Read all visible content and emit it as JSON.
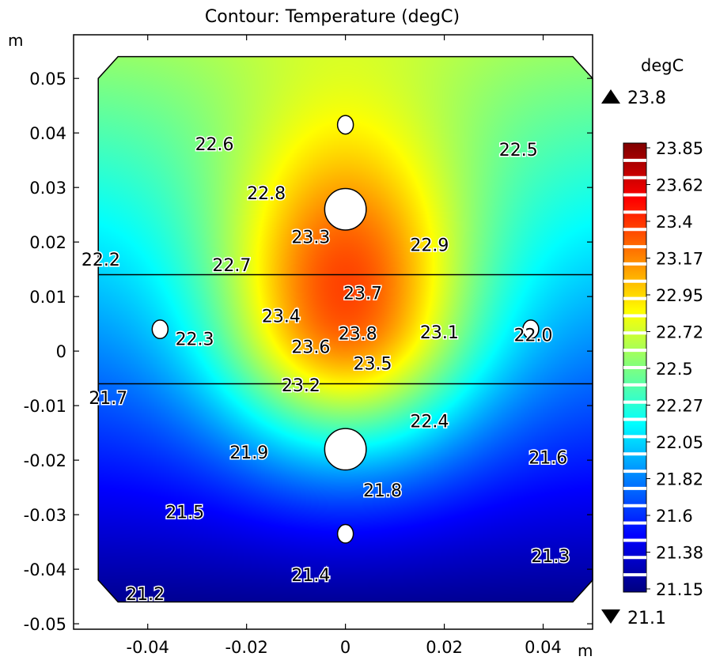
{
  "chart_data": {
    "type": "contour",
    "title": "Contour: Temperature (degC)",
    "x_unit_label": "m",
    "y_unit_label": "m",
    "x_axis": {
      "range": [
        -0.055,
        0.05
      ],
      "ticks": [
        -0.04,
        -0.02,
        0,
        0.02,
        0.04
      ],
      "tick_labels": [
        "-0.04",
        "-0.02",
        "0",
        "0.02",
        "0.04"
      ]
    },
    "y_axis": {
      "range": [
        -0.051,
        0.058
      ],
      "ticks": [
        -0.05,
        -0.04,
        -0.03,
        -0.02,
        -0.01,
        0,
        0.01,
        0.02,
        0.03,
        0.04,
        0.05
      ],
      "tick_labels": [
        "-0.05",
        "-0.04",
        "-0.03",
        "-0.02",
        "-0.01",
        "0",
        "0.01",
        "0.02",
        "0.03",
        "0.04",
        "0.05"
      ]
    },
    "domain": {
      "x_range": [
        -0.05,
        0.05
      ],
      "y_range": [
        -0.046,
        0.054
      ],
      "chamfer": 0.004
    },
    "layer_boundaries_y": [
      0.014,
      -0.006
    ],
    "holes": [
      {
        "x": 0.0,
        "y": 0.0415,
        "rx": 0.0016,
        "ry": 0.0017
      },
      {
        "x": 0.0,
        "y": 0.026,
        "rx": 0.0042,
        "ry": 0.0038
      },
      {
        "x": 0.0,
        "y": -0.018,
        "rx": 0.0042,
        "ry": 0.0038
      },
      {
        "x": 0.0,
        "y": -0.0335,
        "rx": 0.0016,
        "ry": 0.0017
      },
      {
        "x": -0.0375,
        "y": 0.004,
        "rx": 0.0016,
        "ry": 0.0017
      },
      {
        "x": 0.0375,
        "y": 0.004,
        "rx": 0.0016,
        "ry": 0.0017
      }
    ],
    "hot_spot": {
      "x": 0.0,
      "y": 0.006
    },
    "contour_labels": [
      {
        "text": "22.6",
        "x": -0.0265,
        "y": 0.038
      },
      {
        "text": "22.5",
        "x": 0.035,
        "y": 0.037
      },
      {
        "text": "22.8",
        "x": -0.016,
        "y": 0.029
      },
      {
        "text": "23.3",
        "x": -0.007,
        "y": 0.021
      },
      {
        "text": "22.9",
        "x": 0.017,
        "y": 0.0195
      },
      {
        "text": "22.2",
        "x": -0.0495,
        "y": 0.0168
      },
      {
        "text": "22.7",
        "x": -0.023,
        "y": 0.0158
      },
      {
        "text": "23.7",
        "x": 0.0035,
        "y": 0.0107
      },
      {
        "text": "23.4",
        "x": -0.013,
        "y": 0.0065
      },
      {
        "text": "22.3",
        "x": -0.0305,
        "y": 0.0023
      },
      {
        "text": "23.8",
        "x": 0.0025,
        "y": 0.0033
      },
      {
        "text": "23.1",
        "x": 0.019,
        "y": 0.0035
      },
      {
        "text": "22.0",
        "x": 0.038,
        "y": 0.003
      },
      {
        "text": "23.6",
        "x": -0.007,
        "y": 0.0008
      },
      {
        "text": "23.5",
        "x": 0.0055,
        "y": -0.0022
      },
      {
        "text": "23.2",
        "x": -0.009,
        "y": -0.0062
      },
      {
        "text": "21.7",
        "x": -0.048,
        "y": -0.0085
      },
      {
        "text": "22.4",
        "x": 0.017,
        "y": -0.0128
      },
      {
        "text": "21.9",
        "x": -0.0195,
        "y": -0.0185
      },
      {
        "text": "21.6",
        "x": 0.041,
        "y": -0.0195
      },
      {
        "text": "21.8",
        "x": 0.0075,
        "y": -0.0255
      },
      {
        "text": "21.5",
        "x": -0.0325,
        "y": -0.0295
      },
      {
        "text": "21.3",
        "x": 0.0415,
        "y": -0.0375
      },
      {
        "text": "21.4",
        "x": -0.007,
        "y": -0.041
      },
      {
        "text": "21.2",
        "x": -0.0405,
        "y": -0.0445
      }
    ],
    "colorbar": {
      "unit": "degC",
      "max_label": "23.8",
      "min_label": "21.1",
      "tick_labels": [
        "23.85",
        "23.62",
        "23.4",
        "23.17",
        "22.95",
        "22.72",
        "22.5",
        "22.27",
        "22.05",
        "21.82",
        "21.6",
        "21.38",
        "21.15"
      ],
      "range": [
        21.1,
        23.9
      ]
    }
  },
  "colors": {
    "stops": [
      "#00007f",
      "#0000ff",
      "#007fff",
      "#00ffff",
      "#7fff7f",
      "#ffff00",
      "#ff7f00",
      "#ff0000",
      "#7f0000"
    ],
    "frame": "#000000",
    "background": "#ffffff"
  }
}
